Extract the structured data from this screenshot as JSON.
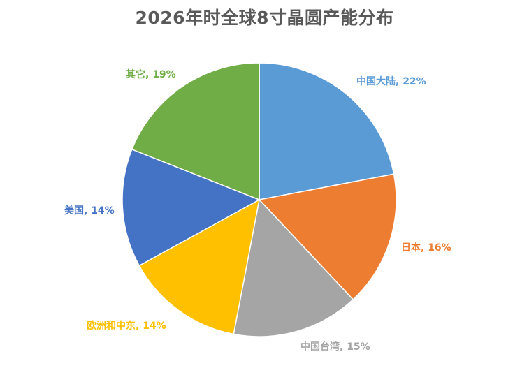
{
  "chart_data": {
    "type": "pie",
    "title": "2026年时全球8寸晶圆产能分布",
    "slices": [
      {
        "name": "中国大陆",
        "value": 22,
        "label": "中国大陆, 22%",
        "color": "#5B9BD5"
      },
      {
        "name": "日本",
        "value": 16,
        "label": "日本, 16%",
        "color": "#ED7D31"
      },
      {
        "name": "中国台湾",
        "value": 15,
        "label": "中国台湾, 15%",
        "color": "#A5A5A5"
      },
      {
        "name": "欧洲和中东",
        "value": 14,
        "label": "欧洲和中东, 14%",
        "color": "#FFC000"
      },
      {
        "name": "美国",
        "value": 14,
        "label": "美国, 14%",
        "color": "#4472C4"
      },
      {
        "name": "其它",
        "value": 19,
        "label": "其它, 19%",
        "color": "#70AD47"
      }
    ],
    "label_colors": [
      "#5B9BD5",
      "#ED7D31",
      "#A5A5A5",
      "#FFC000",
      "#4472C4",
      "#70AD47"
    ],
    "start_angle_deg": 0,
    "direction": "clockwise",
    "legend": "none"
  }
}
